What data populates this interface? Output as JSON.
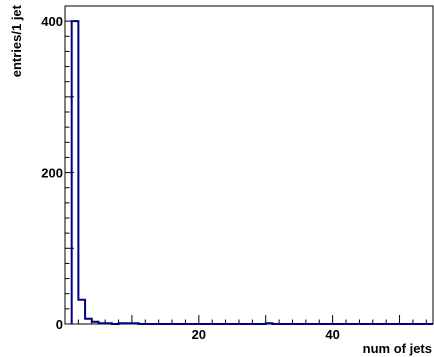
{
  "chart_data": {
    "type": "bar",
    "histogram": true,
    "title": "",
    "xlabel": "num of jets",
    "ylabel": "entries/1 jet",
    "bin_width": 1,
    "xlim": [
      0,
      55
    ],
    "ylim": [
      0,
      420
    ],
    "x_ticks": [
      20,
      40
    ],
    "y_ticks": [
      0,
      200,
      400
    ],
    "line_color": "#000080",
    "grid": false,
    "bins": [
      {
        "x": 1,
        "value": 400
      },
      {
        "x": 2,
        "value": 32
      },
      {
        "x": 3,
        "value": 7
      },
      {
        "x": 4,
        "value": 3
      },
      {
        "x": 5,
        "value": 1
      },
      {
        "x": 6,
        "value": 1
      },
      {
        "x": 7,
        "value": 0
      },
      {
        "x": 8,
        "value": 1
      },
      {
        "x": 9,
        "value": 1
      },
      {
        "x": 10,
        "value": 1
      },
      {
        "x": 30,
        "value": 1
      }
    ]
  }
}
